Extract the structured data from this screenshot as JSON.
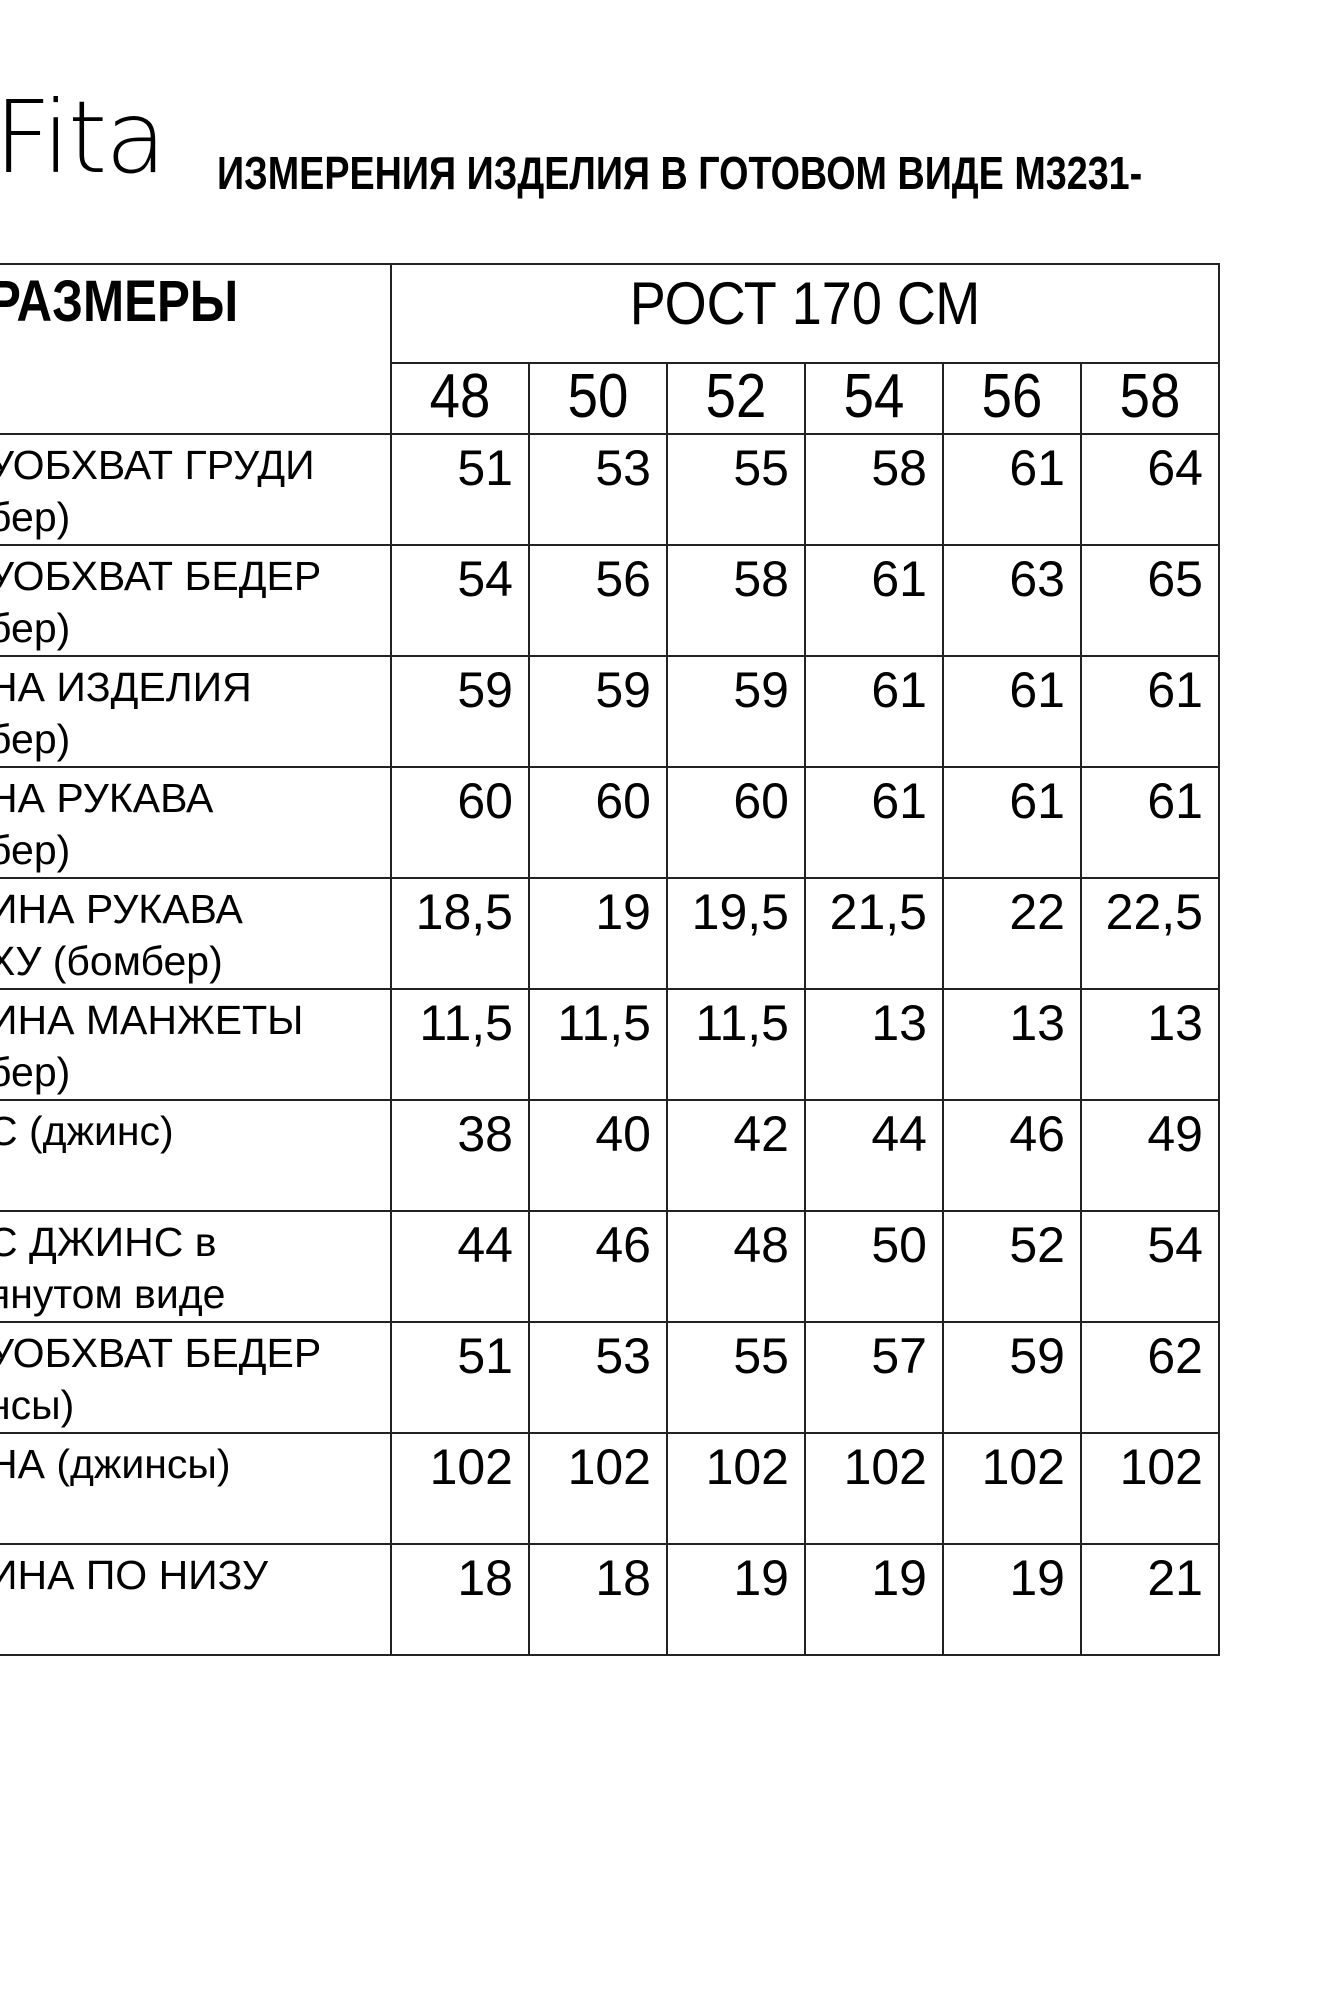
{
  "brand": "Fita",
  "title": "ИЗМЕРЕНИЯ ИЗДЕЛИЯ В ГОТОВОМ ВИДЕ М3231-",
  "table": {
    "header_label": "РАЗМЕРЫ",
    "height_label": "РОСТ 170 СМ",
    "sizes": [
      "48",
      "50",
      "52",
      "54",
      "56",
      "58"
    ],
    "rows": [
      {
        "label": [
          "УОБХВАТ ГРУДИ",
          "бер)"
        ],
        "values": [
          "51",
          "53",
          "55",
          "58",
          "61",
          "64"
        ]
      },
      {
        "label": [
          "УОБХВАТ БЕДЕР",
          "бер)"
        ],
        "values": [
          "54",
          "56",
          "58",
          "61",
          "63",
          "65"
        ]
      },
      {
        "label": [
          "НА ИЗДЕЛИЯ",
          "бер)"
        ],
        "values": [
          "59",
          "59",
          "59",
          "61",
          "61",
          "61"
        ]
      },
      {
        "label": [
          "НА РУКАВА",
          "бер)"
        ],
        "values": [
          "60",
          "60",
          "60",
          "61",
          "61",
          "61"
        ]
      },
      {
        "label": [
          "ИНА РУКАВА",
          "ХУ (бомбер)"
        ],
        "values": [
          "18,5",
          "19",
          "19,5",
          "21,5",
          "22",
          "22,5"
        ]
      },
      {
        "label": [
          "ИНА МАНЖЕТЫ",
          "бер)"
        ],
        "values": [
          "11,5",
          "11,5",
          "11,5",
          "13",
          "13",
          "13"
        ]
      },
      {
        "label": [
          "С (джинс)",
          ""
        ],
        "values": [
          "38",
          "40",
          "42",
          "44",
          "46",
          "49"
        ]
      },
      {
        "label": [
          "С ДЖИНС в",
          "янутом виде"
        ],
        "values": [
          "44",
          "46",
          "48",
          "50",
          "52",
          "54"
        ]
      },
      {
        "label": [
          "УОБХВАТ БЕДЕР",
          "нсы)"
        ],
        "values": [
          "51",
          "53",
          "55",
          "57",
          "59",
          "62"
        ]
      },
      {
        "label": [
          "НА (джинсы)",
          ""
        ],
        "values": [
          "102",
          "102",
          "102",
          "102",
          "102",
          "102"
        ]
      },
      {
        "label": [
          "ИНА ПО НИЗУ",
          ""
        ],
        "values": [
          "18",
          "18",
          "19",
          "19",
          "19",
          "21"
        ]
      }
    ]
  }
}
